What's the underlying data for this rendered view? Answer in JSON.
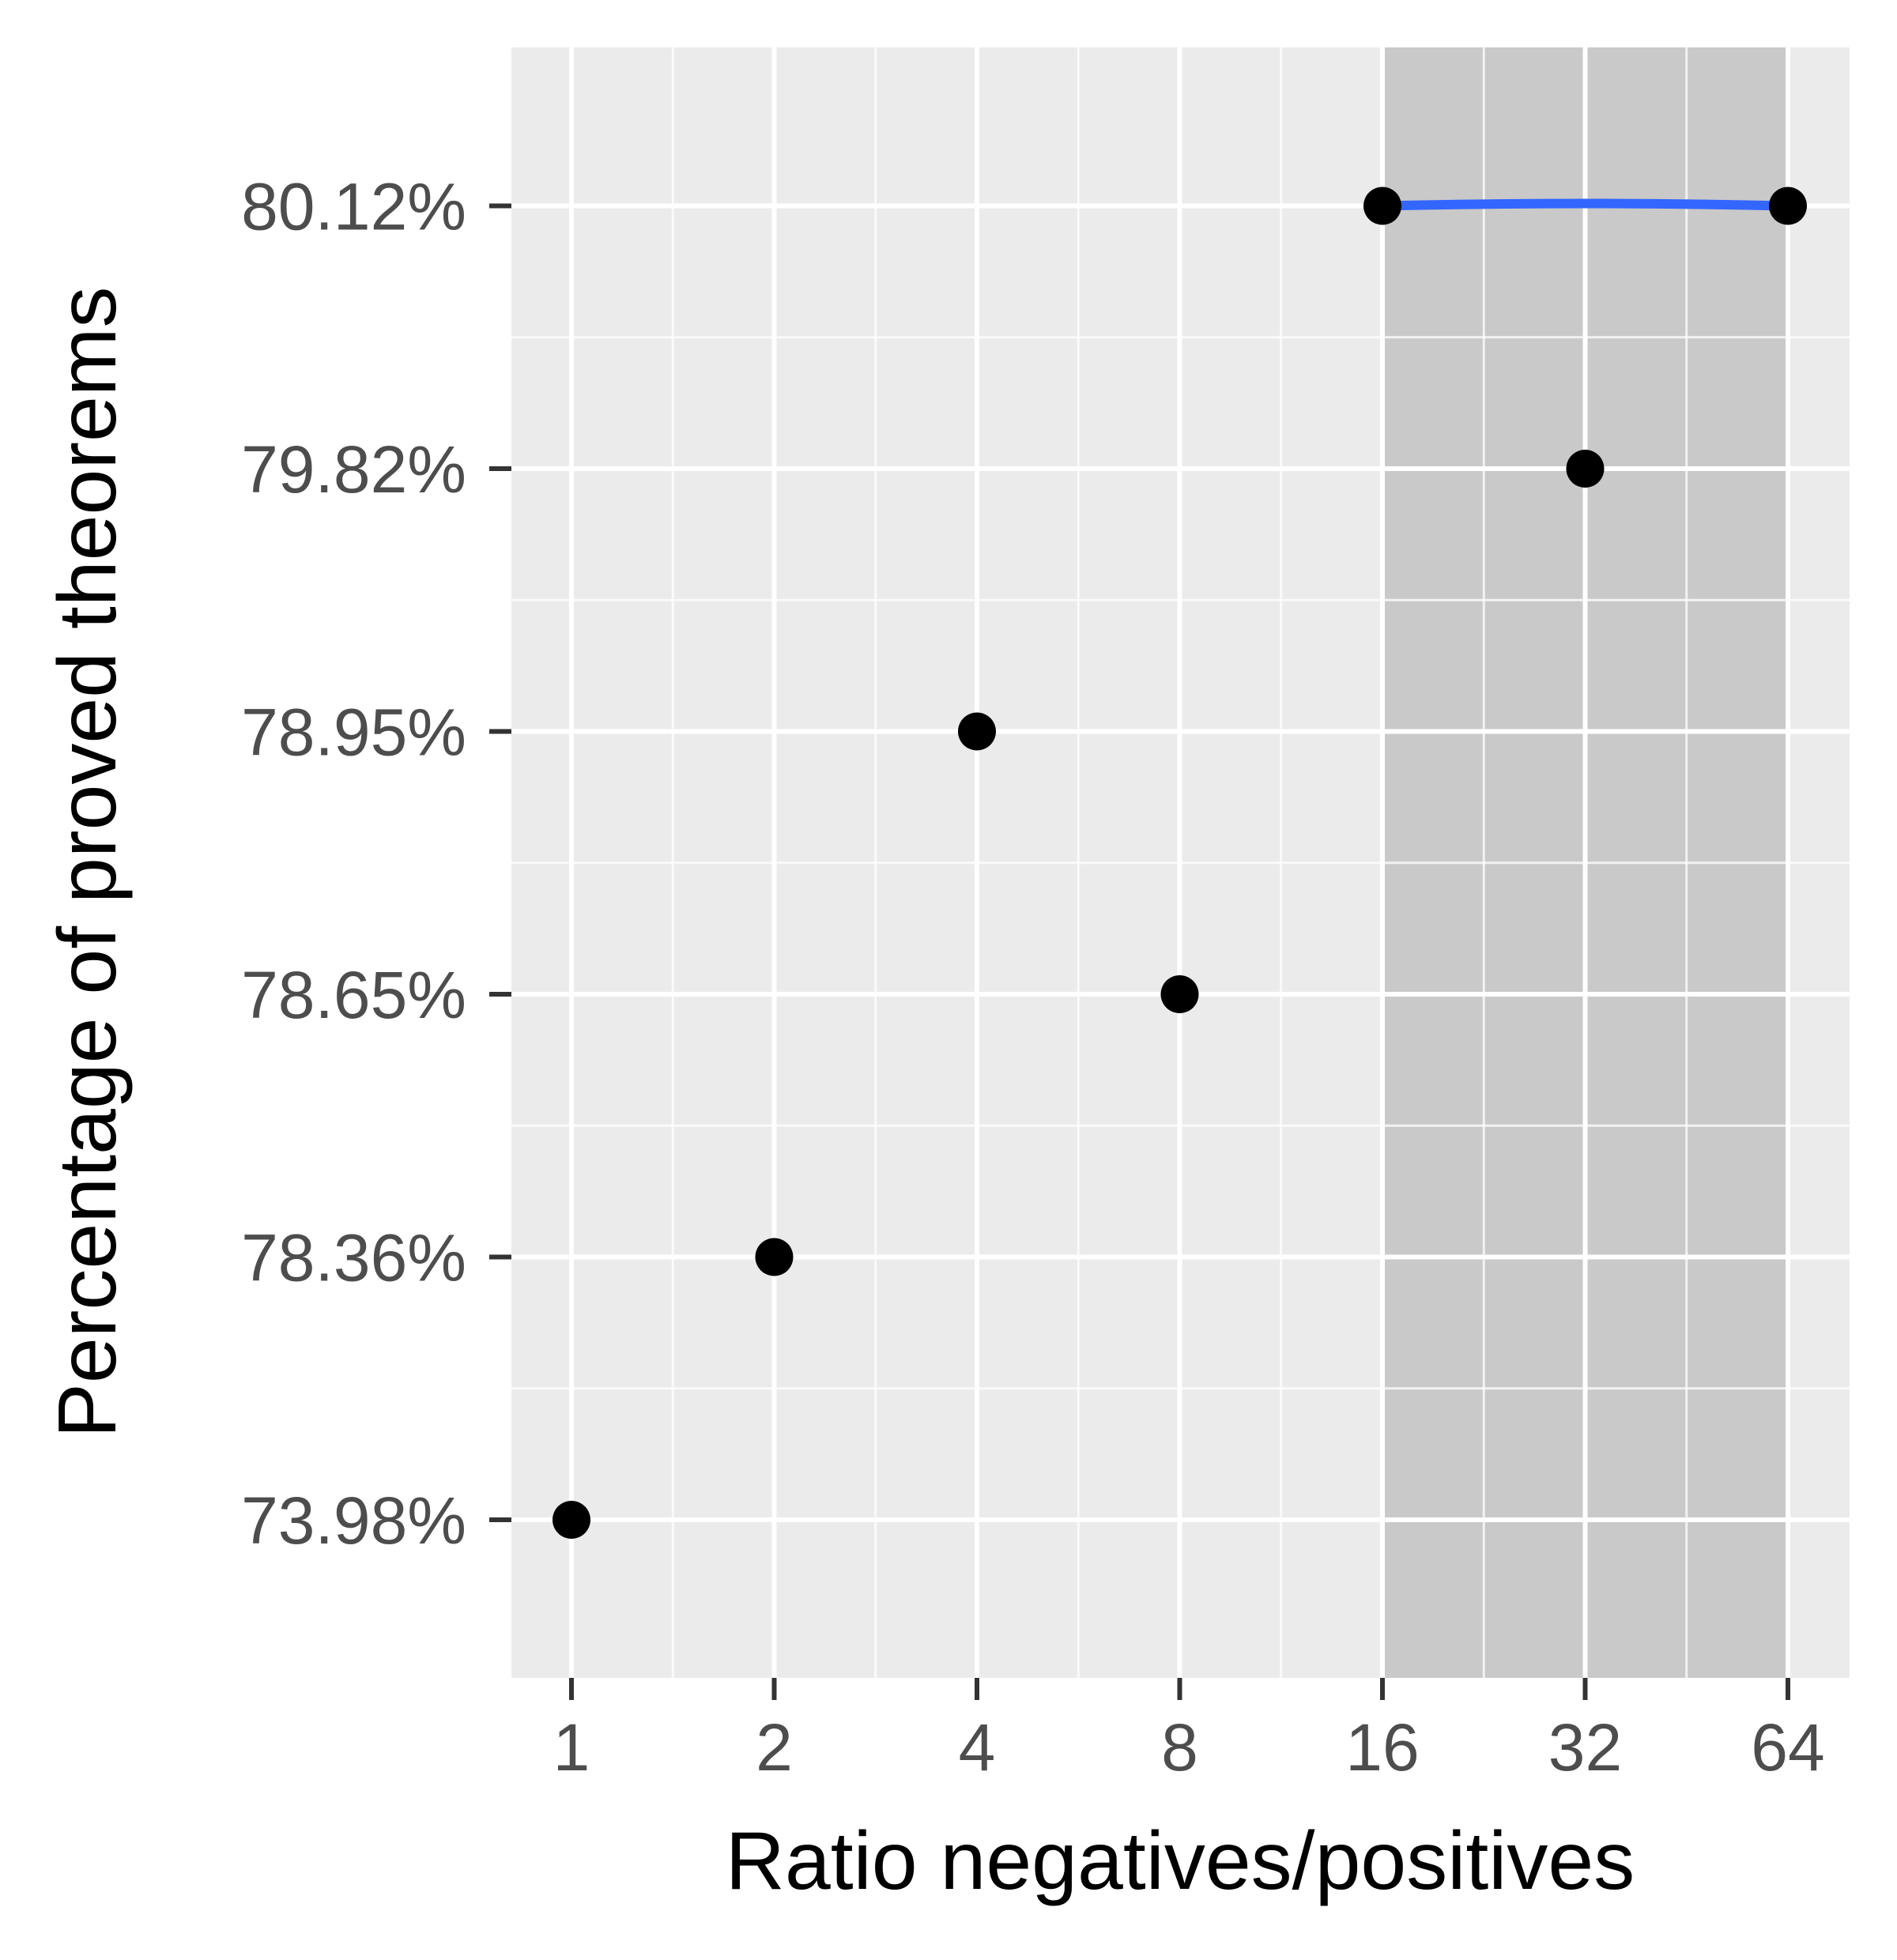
{
  "chart_data": {
    "type": "scatter",
    "title": "",
    "xlabel": "Ratio negatives/positives",
    "ylabel": "Percentage of proved theorems",
    "x_scale": "log2",
    "x_ticks": [
      "1",
      "2",
      "4",
      "8",
      "16",
      "32",
      "64"
    ],
    "y_ticks": [
      "73.98%",
      "78.36%",
      "78.65%",
      "78.95%",
      "79.82%",
      "80.12%"
    ],
    "y_scale": "ordinal (tick labels equally spaced)",
    "points": [
      {
        "x": 1,
        "y": "73.98%"
      },
      {
        "x": 2,
        "y": "78.36%"
      },
      {
        "x": 4,
        "y": "78.95%"
      },
      {
        "x": 8,
        "y": "78.65%"
      },
      {
        "x": 16,
        "y": "80.12%"
      },
      {
        "x": 32,
        "y": "79.82%"
      },
      {
        "x": 64,
        "y": "80.12%"
      }
    ],
    "highlight_region": {
      "x_from": 16,
      "x_to": 64
    },
    "trend_line": {
      "x_from": 16,
      "x_to": 64,
      "y": "80.12%"
    },
    "grid": true,
    "legend": "none",
    "colors": {
      "panel": "#ebebeb",
      "highlight": "#c9c9c9",
      "grid": "#ffffff",
      "point": "#000000",
      "trend_line": "#3366ff",
      "tick_label": "#4d4d4d"
    }
  }
}
